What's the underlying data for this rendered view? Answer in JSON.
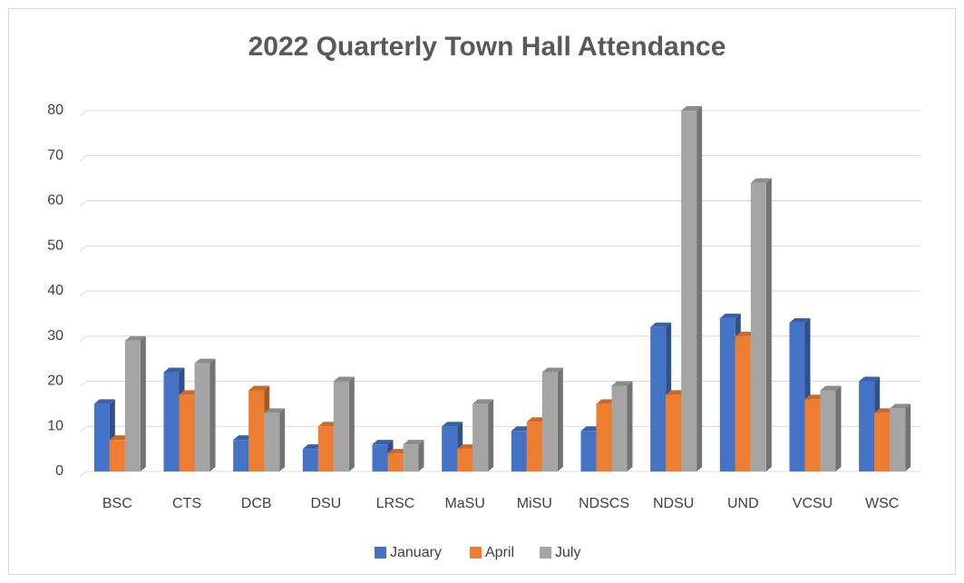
{
  "chart_data": {
    "type": "bar",
    "title": "2022 Quarterly Town Hall Attendance",
    "categories": [
      "BSC",
      "CTS",
      "DCB",
      "DSU",
      "LRSC",
      "MaSU",
      "MiSU",
      "NDSCS",
      "NDSU",
      "UND",
      "VCSU",
      "WSC"
    ],
    "series": [
      {
        "name": "January",
        "color": "#4472c4",
        "values": [
          15,
          22,
          7,
          5,
          6,
          10,
          9,
          9,
          32,
          34,
          33,
          20
        ]
      },
      {
        "name": "April",
        "color": "#ed7d31",
        "values": [
          7,
          17,
          18,
          10,
          4,
          5,
          11,
          15,
          17,
          30,
          16,
          13
        ]
      },
      {
        "name": "July",
        "color": "#a5a5a5",
        "values": [
          29,
          24,
          13,
          20,
          6,
          15,
          22,
          19,
          80,
          64,
          18,
          14
        ]
      }
    ],
    "ylim": [
      0,
      80
    ],
    "yticks": [
      0,
      10,
      20,
      30,
      40,
      50,
      60,
      70,
      80
    ],
    "grid": true,
    "legend": "bottom"
  }
}
